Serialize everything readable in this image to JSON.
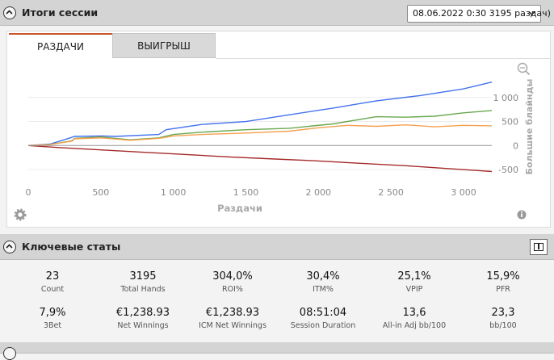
{
  "session_header": {
    "title": "Итоги сессии",
    "selected_session": "08.06.2022 0:30 3195 раздач)"
  },
  "tabs": [
    {
      "label": "РАЗДАЧИ",
      "active": true
    },
    {
      "label": "ВЫИГРЫШ",
      "active": false
    }
  ],
  "chart_data": {
    "type": "line",
    "xlabel": "Раздачи",
    "ylabel": "Большие блайнды",
    "xlim": [
      0,
      3195
    ],
    "ylim": [
      -750,
      1500
    ],
    "x_ticks": [
      0,
      500,
      1000,
      1500,
      2000,
      2500,
      3000
    ],
    "x_tick_labels": [
      "0",
      "500",
      "1 000",
      "1 500",
      "2 000",
      "2 500",
      "3 000"
    ],
    "y_ticks": [
      1000,
      500,
      0,
      -500
    ],
    "y_tick_labels": [
      "1 000",
      "500",
      "0",
      "-500"
    ],
    "series": [
      {
        "color": "#4472ee",
        "x": [
          0,
          150,
          300,
          320,
          500,
          600,
          900,
          950,
          1200,
          1500,
          1800,
          2100,
          2400,
          2700,
          3000,
          3195
        ],
        "y": [
          0,
          30,
          170,
          190,
          200,
          190,
          230,
          330,
          440,
          500,
          640,
          780,
          930,
          1040,
          1180,
          1320
        ]
      },
      {
        "color": "#6aa84f",
        "x": [
          0,
          150,
          300,
          320,
          500,
          700,
          900,
          1000,
          1200,
          1500,
          1800,
          2100,
          2400,
          2600,
          2800,
          3000,
          3195
        ],
        "y": [
          0,
          20,
          100,
          150,
          180,
          120,
          160,
          230,
          280,
          330,
          360,
          450,
          600,
          590,
          610,
          680,
          730
        ]
      },
      {
        "color": "#f5a050",
        "x": [
          0,
          150,
          300,
          320,
          500,
          700,
          900,
          1000,
          1200,
          1500,
          1800,
          2000,
          2200,
          2400,
          2600,
          2800,
          3000,
          3195
        ],
        "y": [
          0,
          20,
          90,
          140,
          160,
          110,
          150,
          200,
          230,
          260,
          300,
          370,
          420,
          400,
          430,
          390,
          420,
          410
        ]
      },
      {
        "color": "#a52a2a",
        "x": [
          0,
          200,
          500,
          800,
          1100,
          1400,
          1700,
          2000,
          2300,
          2600,
          2900,
          3100,
          3195
        ],
        "y": [
          0,
          -40,
          -90,
          -140,
          -190,
          -240,
          -280,
          -320,
          -370,
          -420,
          -480,
          -520,
          -540
        ]
      },
      {
        "color": "#999999",
        "x": [
          0,
          3195
        ],
        "y": [
          0,
          0
        ]
      }
    ]
  },
  "stats_header": {
    "title": "Ключевые статы"
  },
  "stats": [
    {
      "value": "23",
      "label": "Count"
    },
    {
      "value": "3195",
      "label": "Total Hands"
    },
    {
      "value": "304,0%",
      "label": "ROI%"
    },
    {
      "value": "30,4%",
      "label": "ITM%"
    },
    {
      "value": "25,1%",
      "label": "VPIP"
    },
    {
      "value": "15,9%",
      "label": "PFR"
    },
    {
      "value": "7,9%",
      "label": "3Bet"
    },
    {
      "value": "€1,238.93",
      "label": "Net Winnings"
    },
    {
      "value": "€1,238.93",
      "label": "ICM Net Winnings"
    },
    {
      "value": "08:51:04",
      "label": "Session Duration"
    },
    {
      "value": "13,6",
      "label": "All-in Adj bb/100"
    },
    {
      "value": "23,3",
      "label": "bb/100"
    }
  ]
}
